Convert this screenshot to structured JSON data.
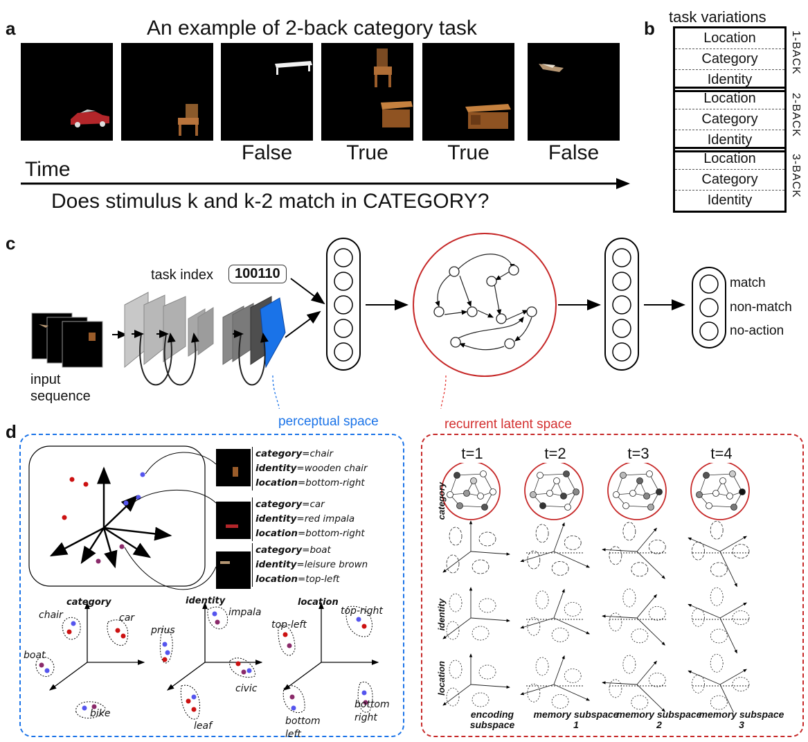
{
  "panel_labels": {
    "a": "a",
    "b": "b",
    "c": "c",
    "d": "d"
  },
  "panel_a": {
    "title": "An example of 2-back category task",
    "answers": [
      "False",
      "True",
      "True",
      "False"
    ],
    "time_label": "Time",
    "question": "Does stimulus k and k-2 match in CATEGORY?"
  },
  "panel_b": {
    "title": "task variations",
    "groups": [
      {
        "label": "1-BACK",
        "rows": [
          "Location",
          "Category",
          "Identity"
        ]
      },
      {
        "label": "2-BACK",
        "rows": [
          "Location",
          "Category",
          "Identity"
        ]
      },
      {
        "label": "3-BACK",
        "rows": [
          "Location",
          "Category",
          "Identity"
        ]
      }
    ]
  },
  "panel_c": {
    "task_index_label": "task index",
    "task_index_value": "100110",
    "input_label": "input sequence",
    "outputs": [
      "match",
      "non-match",
      "no-action"
    ]
  },
  "panel_d": {
    "perceptual_label": "perceptual space",
    "recurrent_label": "recurrent latent space",
    "examples": [
      {
        "category": "chair",
        "identity": "wooden chair",
        "location": "bottom-right"
      },
      {
        "category": "car",
        "identity": "red impala",
        "location": "bottom-right"
      },
      {
        "category": "boat",
        "identity": "leisure brown",
        "location": "top-left"
      }
    ],
    "feature_keys": {
      "category": "category",
      "identity": "identity",
      "location": "location"
    },
    "subspaces": {
      "category": {
        "title": "category",
        "clusters": [
          "chair",
          "car",
          "boat",
          "bike"
        ]
      },
      "identity": {
        "title": "identity",
        "clusters": [
          "prius",
          "impala",
          "civic",
          "leaf"
        ]
      },
      "location": {
        "title": "location",
        "clusters": [
          "top-left",
          "top-right",
          "bottom left",
          "bottom right"
        ]
      }
    },
    "time_steps": [
      "t=1",
      "t=2",
      "t=3",
      "t=4"
    ],
    "row_labels": [
      "category",
      "identity",
      "location"
    ],
    "subspace_labels": [
      "encoding subspace",
      "memory subspace 1",
      "memory subspace 2",
      "memory subspace 3"
    ]
  },
  "colors": {
    "blue_layer": "#1a73e8",
    "red_circle": "#c62828",
    "dot_red": "#cc1111",
    "dot_blue": "#5555ee",
    "dot_purple": "#8a2a6a"
  }
}
